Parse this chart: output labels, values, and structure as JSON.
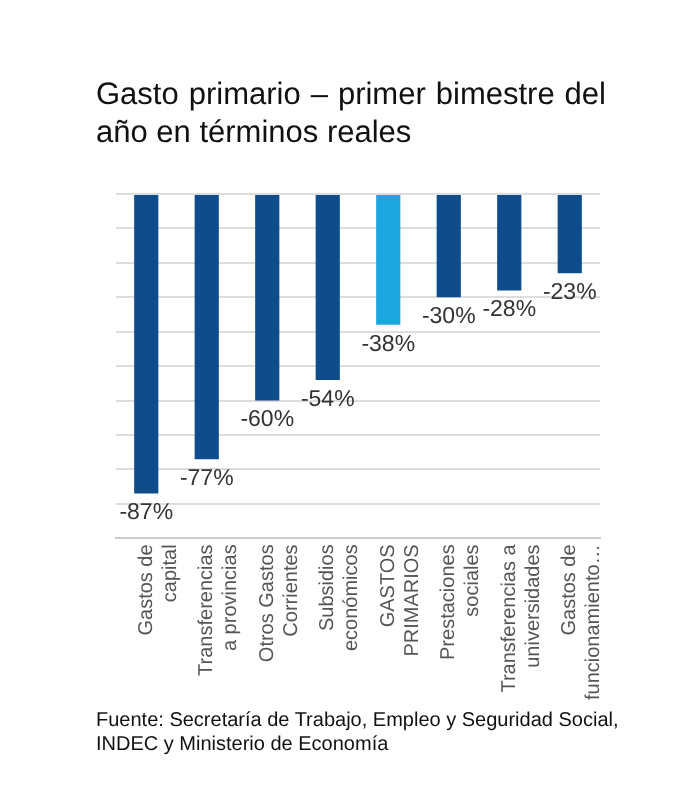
{
  "chart_data": {
    "type": "bar",
    "title": "Gasto primario – primer bimestre del año en términos reales",
    "categories": [
      "Gastos de\ncapital",
      "Transferencias\na provincias",
      "Otros Gastos\nCorrientes",
      "Subsidios\neconómicos",
      "GASTOS\nPRIMARIOS",
      "Prestaciones\nsociales",
      "Transferencias a\nuniversidades",
      "Gastos de\nfuncionamiento…"
    ],
    "values": [
      -87,
      -77,
      -60,
      -54,
      -38,
      -30,
      -28,
      -23
    ],
    "colors": [
      "#0f4c8c",
      "#0f4c8c",
      "#0f4c8c",
      "#0f4c8c",
      "#1ba6df",
      "#0f4c8c",
      "#0f4c8c",
      "#0f4c8c"
    ],
    "value_labels": [
      "-87%",
      "-77%",
      "-60%",
      "-54%",
      "-38%",
      "-30%",
      "-28%",
      "-23%"
    ],
    "grid": "y",
    "tick_labels": "x",
    "legend": false,
    "annotations": [
      "Fuente: Secretaría de Trabajo, Empleo y Seguridad Social, INDEC y Ministerio de Economía"
    ]
  }
}
